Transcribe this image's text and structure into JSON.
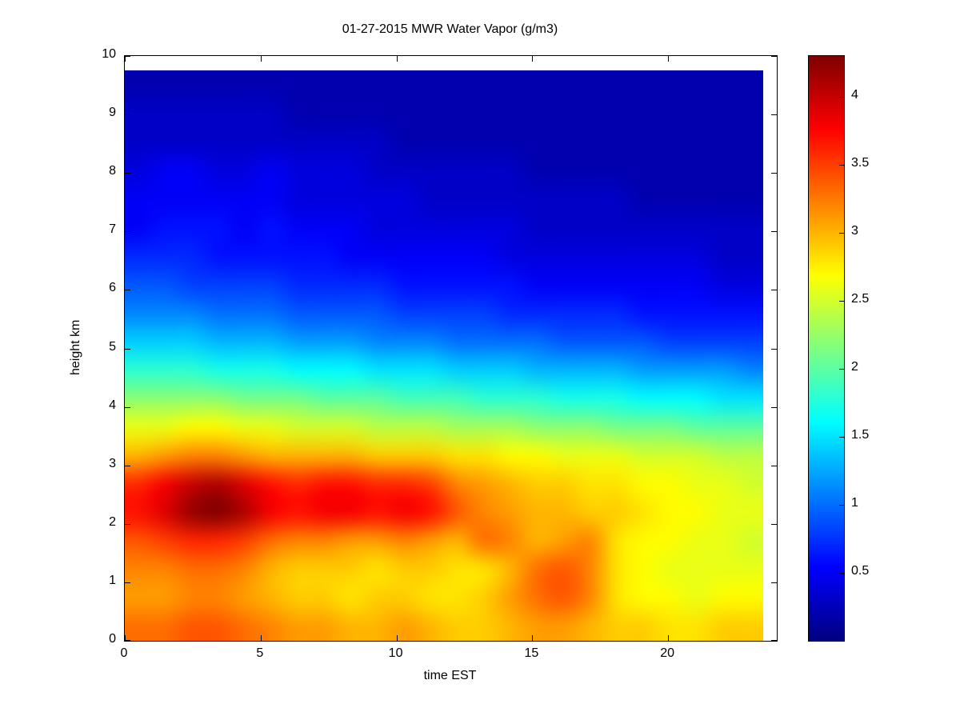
{
  "chart_data": {
    "type": "heatmap",
    "title": "01-27-2015 MWR Water Vapor (g/m3)",
    "xlabel": "time EST",
    "ylabel": "height km",
    "colormap": "jet",
    "background": "#ffffff",
    "axis_color": "#000000",
    "xlim": [
      0,
      24
    ],
    "ylim": [
      0,
      10
    ],
    "x_data_range": [
      0,
      23.5
    ],
    "y_data_range": [
      0,
      9.75
    ],
    "x_ticks": [
      0,
      5,
      10,
      15,
      20
    ],
    "y_ticks": [
      0,
      1,
      2,
      3,
      4,
      5,
      6,
      7,
      8,
      9,
      10
    ],
    "vmin": 0,
    "vmax": 4.3,
    "colorbar_ticks": [
      0.5,
      1,
      1.5,
      2,
      2.5,
      3,
      3.5,
      4
    ],
    "times": [
      0.5,
      1.5,
      2.5,
      3.5,
      4.5,
      5.5,
      6.5,
      7.5,
      8.5,
      9.5,
      10.5,
      11.5,
      12.5,
      13.5,
      14.5,
      15.5,
      16.5,
      17.5,
      18.5,
      19.5,
      20.5,
      21.5,
      22.5,
      23.5
    ],
    "heights": [
      0.25,
      0.75,
      1.25,
      1.75,
      2.25,
      2.75,
      3.25,
      3.75,
      4.25,
      4.75,
      5.25,
      5.75,
      6.25,
      6.75,
      7.25,
      7.75,
      8.25,
      8.75,
      9.25,
      9.75
    ],
    "values": [
      [
        3.3,
        3.3,
        3.4,
        3.4,
        3.3,
        3.2,
        3.1,
        3.1,
        3.0,
        3.0,
        3.1,
        3.0,
        2.9,
        2.9,
        3.0,
        3.1,
        3.1,
        3.0,
        2.9,
        2.9,
        2.8,
        2.8,
        2.9,
        2.9
      ],
      [
        3.1,
        3.1,
        3.2,
        3.2,
        3.1,
        3.0,
        2.9,
        2.9,
        2.8,
        2.9,
        2.9,
        2.8,
        2.8,
        2.9,
        3.1,
        3.3,
        3.4,
        3.2,
        2.8,
        2.7,
        2.7,
        2.6,
        2.7,
        2.7
      ],
      [
        3.2,
        3.2,
        3.3,
        3.3,
        3.2,
        3.0,
        2.9,
        2.9,
        2.9,
        2.8,
        2.9,
        2.9,
        2.8,
        2.8,
        3.0,
        3.3,
        3.4,
        3.2,
        2.8,
        2.7,
        2.6,
        2.6,
        2.6,
        2.6
      ],
      [
        3.4,
        3.5,
        3.6,
        3.6,
        3.5,
        3.3,
        3.2,
        3.2,
        3.1,
        3.1,
        3.2,
        3.1,
        3.0,
        3.3,
        3.2,
        3.0,
        3.1,
        3.2,
        2.8,
        2.7,
        2.7,
        2.6,
        2.6,
        2.5
      ],
      [
        3.7,
        3.9,
        4.2,
        4.3,
        4.1,
        3.8,
        3.7,
        3.8,
        3.8,
        3.7,
        3.8,
        3.7,
        3.4,
        3.2,
        3.1,
        3.0,
        3.0,
        2.9,
        2.9,
        2.8,
        2.7,
        2.7,
        2.6,
        2.6
      ],
      [
        3.6,
        3.8,
        4.0,
        4.1,
        3.9,
        3.7,
        3.6,
        3.7,
        3.7,
        3.6,
        3.6,
        3.5,
        3.2,
        3.1,
        3.0,
        2.9,
        2.9,
        2.8,
        2.8,
        2.7,
        2.7,
        2.6,
        2.6,
        2.5
      ],
      [
        3.0,
        3.1,
        3.2,
        3.2,
        3.1,
        3.0,
        3.0,
        3.0,
        3.0,
        2.9,
        2.9,
        2.9,
        2.8,
        2.8,
        2.7,
        2.7,
        2.6,
        2.6,
        2.6,
        2.5,
        2.5,
        2.5,
        2.4,
        2.4
      ],
      [
        2.6,
        2.6,
        2.7,
        2.7,
        2.6,
        2.6,
        2.5,
        2.5,
        2.5,
        2.4,
        2.4,
        2.4,
        2.3,
        2.3,
        2.3,
        2.2,
        2.2,
        2.2,
        2.1,
        2.1,
        2.1,
        2.0,
        2.0,
        2.0
      ],
      [
        2.2,
        2.2,
        2.2,
        2.2,
        2.1,
        2.1,
        2.1,
        2.0,
        2.0,
        2.0,
        1.9,
        1.9,
        1.9,
        1.8,
        1.8,
        1.8,
        1.7,
        1.7,
        1.7,
        1.6,
        1.6,
        1.6,
        1.5,
        1.5
      ],
      [
        1.8,
        1.8,
        1.8,
        1.7,
        1.7,
        1.7,
        1.6,
        1.6,
        1.6,
        1.5,
        1.5,
        1.5,
        1.4,
        1.4,
        1.4,
        1.3,
        1.3,
        1.3,
        1.3,
        1.2,
        1.2,
        1.2,
        1.2,
        1.1
      ],
      [
        1.4,
        1.4,
        1.4,
        1.3,
        1.3,
        1.3,
        1.2,
        1.2,
        1.2,
        1.1,
        1.1,
        1.1,
        1.0,
        1.0,
        1.0,
        1.0,
        0.9,
        0.9,
        0.9,
        0.9,
        0.8,
        0.8,
        0.8,
        0.8
      ],
      [
        1.1,
        1.1,
        1.1,
        1.0,
        1.0,
        1.0,
        0.9,
        0.9,
        0.9,
        0.9,
        0.8,
        0.8,
        0.8,
        0.8,
        0.7,
        0.7,
        0.7,
        0.7,
        0.7,
        0.6,
        0.6,
        0.6,
        0.6,
        0.6
      ],
      [
        0.9,
        0.9,
        0.8,
        0.8,
        0.8,
        0.8,
        0.7,
        0.7,
        0.7,
        0.7,
        0.6,
        0.6,
        0.6,
        0.6,
        0.6,
        0.5,
        0.5,
        0.5,
        0.5,
        0.5,
        0.5,
        0.5,
        0.4,
        0.4
      ],
      [
        0.7,
        0.7,
        0.7,
        0.6,
        0.6,
        0.6,
        0.6,
        0.6,
        0.5,
        0.5,
        0.5,
        0.5,
        0.5,
        0.5,
        0.4,
        0.4,
        0.4,
        0.4,
        0.4,
        0.4,
        0.4,
        0.4,
        0.3,
        0.3
      ],
      [
        0.5,
        0.6,
        0.6,
        0.6,
        0.5,
        0.6,
        0.5,
        0.5,
        0.5,
        0.4,
        0.4,
        0.4,
        0.4,
        0.4,
        0.4,
        0.3,
        0.3,
        0.3,
        0.3,
        0.3,
        0.3,
        0.3,
        0.3,
        0.3
      ],
      [
        0.5,
        0.5,
        0.5,
        0.5,
        0.5,
        0.5,
        0.4,
        0.4,
        0.4,
        0.4,
        0.4,
        0.3,
        0.3,
        0.3,
        0.3,
        0.3,
        0.3,
        0.3,
        0.3,
        0.2,
        0.2,
        0.2,
        0.2,
        0.2
      ],
      [
        0.4,
        0.5,
        0.5,
        0.4,
        0.4,
        0.5,
        0.4,
        0.4,
        0.4,
        0.3,
        0.3,
        0.3,
        0.3,
        0.3,
        0.3,
        0.2,
        0.2,
        0.2,
        0.2,
        0.2,
        0.2,
        0.2,
        0.2,
        0.2
      ],
      [
        0.3,
        0.3,
        0.3,
        0.3,
        0.3,
        0.3,
        0.3,
        0.3,
        0.3,
        0.3,
        0.2,
        0.2,
        0.2,
        0.2,
        0.2,
        0.2,
        0.2,
        0.2,
        0.2,
        0.2,
        0.2,
        0.2,
        0.2,
        0.2
      ],
      [
        0.3,
        0.3,
        0.3,
        0.3,
        0.3,
        0.3,
        0.2,
        0.2,
        0.2,
        0.2,
        0.2,
        0.2,
        0.2,
        0.2,
        0.2,
        0.2,
        0.2,
        0.2,
        0.2,
        0.2,
        0.2,
        0.2,
        0.2,
        0.2
      ],
      [
        0.2,
        0.2,
        0.2,
        0.2,
        0.2,
        0.2,
        0.2,
        0.2,
        0.2,
        0.2,
        0.2,
        0.2,
        0.2,
        0.2,
        0.2,
        0.2,
        0.2,
        0.2,
        0.2,
        0.2,
        0.2,
        0.2,
        0.2,
        0.2
      ]
    ]
  }
}
